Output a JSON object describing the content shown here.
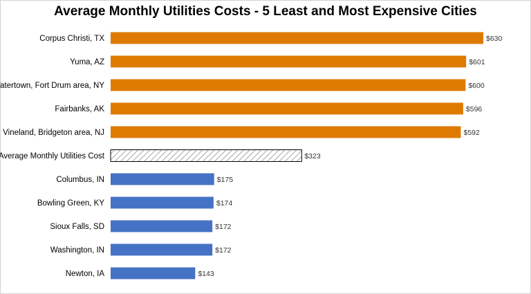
{
  "chart_data": {
    "type": "bar",
    "orientation": "horizontal",
    "title": "Average Monthly Utilities Costs - 5 Least and Most Expensive Cities",
    "xlabel": "",
    "ylabel": "",
    "xlim": [
      0,
      630
    ],
    "grid": false,
    "legend": "none",
    "categories": [
      "Corpus Christi, TX",
      "Yuma, AZ",
      "Watertown, Fort Drum area, NY",
      "Fairbanks, AK",
      "Vineland, Bridgeton area, NJ",
      "Average Monthly Utilities Cost",
      "Columbus, IN",
      "Bowling Green, KY",
      "Sioux Falls, SD",
      "Washington, IN",
      "Newton, IA"
    ],
    "values": [
      630,
      601,
      600,
      596,
      592,
      323,
      175,
      174,
      172,
      172,
      143
    ],
    "value_labels": [
      "$630",
      "$601",
      "$600",
      "$596",
      "$592",
      "$323",
      "$175",
      "$174",
      "$172",
      "$172",
      "$143"
    ],
    "bar_styles": [
      "most",
      "most",
      "most",
      "most",
      "most",
      "average",
      "least",
      "least",
      "least",
      "least",
      "least"
    ],
    "colors": {
      "most": "#DE7A00",
      "least": "#4472C4",
      "average_hatch": "#A6A6A6",
      "average_border": "#000000"
    }
  }
}
